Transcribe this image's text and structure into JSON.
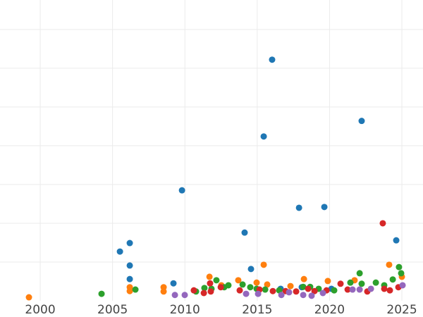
{
  "chart_data": {
    "type": "scatter",
    "xlim": [
      1997.22,
      2026.46
    ],
    "ylim": [
      0,
      7.76
    ],
    "xticks": [
      2000,
      2005,
      2010,
      2015,
      2020,
      2025
    ],
    "ygrid": [
      1,
      2,
      3,
      4,
      5,
      6,
      7
    ],
    "grid": true,
    "series": [
      {
        "color": "#1f77b4",
        "x": [
          2016.03,
          2015.45,
          2022.22,
          2009.8,
          2017.89,
          2019.64,
          2014.13,
          2024.61,
          2005.51,
          2006.19,
          2006.19,
          2014.57,
          2006.19,
          2009.21,
          2016.62,
          2018.08,
          2020.13
        ],
        "values": [
          6.22,
          4.24,
          4.64,
          2.85,
          2.4,
          2.42,
          1.76,
          1.56,
          1.27,
          1.49,
          0.91,
          0.82,
          0.56,
          0.45,
          0.31,
          0.35,
          0.31
        ]
      },
      {
        "color": "#ff7f0e",
        "x": [
          1999.22,
          2006.19,
          2006.19,
          2008.53,
          2008.53,
          2011.7,
          2013.69,
          2014.96,
          2015.45,
          2015.69,
          2017.3,
          2018.23,
          2019.88,
          2021.73,
          2024.12,
          2025.0,
          2012.52
        ],
        "values": [
          0.09,
          0.35,
          0.25,
          0.35,
          0.24,
          0.62,
          0.53,
          0.47,
          0.93,
          0.42,
          0.38,
          0.56,
          0.51,
          0.53,
          0.93,
          0.62,
          0.4
        ]
      },
      {
        "color": "#2ca02c",
        "x": [
          2004.24,
          2006.58,
          2010.77,
          2012.18,
          2012.72,
          2013.01,
          2013.99,
          2014.52,
          2014.96,
          2015.55,
          2016.52,
          2018.18,
          2018.66,
          2019.25,
          2020.32,
          2021.44,
          2022.08,
          2022.22,
          2023.2,
          2023.78,
          2024.37,
          2024.8,
          2024.95,
          2011.35,
          2011.84
        ],
        "values": [
          0.18,
          0.29,
          0.24,
          0.53,
          0.35,
          0.4,
          0.42,
          0.35,
          0.31,
          0.29,
          0.27,
          0.36,
          0.36,
          0.31,
          0.27,
          0.47,
          0.71,
          0.44,
          0.47,
          0.4,
          0.55,
          0.87,
          0.71,
          0.33,
          0.31
        ]
      },
      {
        "color": "#d62728",
        "x": [
          2023.68,
          2010.62,
          2011.31,
          2011.74,
          2011.79,
          2012.48,
          2013.79,
          2015.16,
          2016.08,
          2016.96,
          2017.69,
          2018.52,
          2018.96,
          2019.79,
          2020.76,
          2021.25,
          2022.61,
          2023.78,
          2024.17,
          2024.76
        ],
        "values": [
          2.0,
          0.27,
          0.2,
          0.45,
          0.24,
          0.35,
          0.27,
          0.29,
          0.25,
          0.25,
          0.24,
          0.31,
          0.25,
          0.27,
          0.44,
          0.29,
          0.24,
          0.31,
          0.27,
          0.35
        ]
      },
      {
        "color": "#9467bd",
        "x": [
          2009.31,
          2009.99,
          2014.23,
          2015.06,
          2016.67,
          2017.2,
          2018.18,
          2018.76,
          2019.54,
          2021.59,
          2022.08,
          2022.86,
          2025.05
        ],
        "values": [
          0.15,
          0.15,
          0.18,
          0.18,
          0.15,
          0.22,
          0.15,
          0.13,
          0.2,
          0.29,
          0.29,
          0.31,
          0.4
        ]
      }
    ]
  }
}
